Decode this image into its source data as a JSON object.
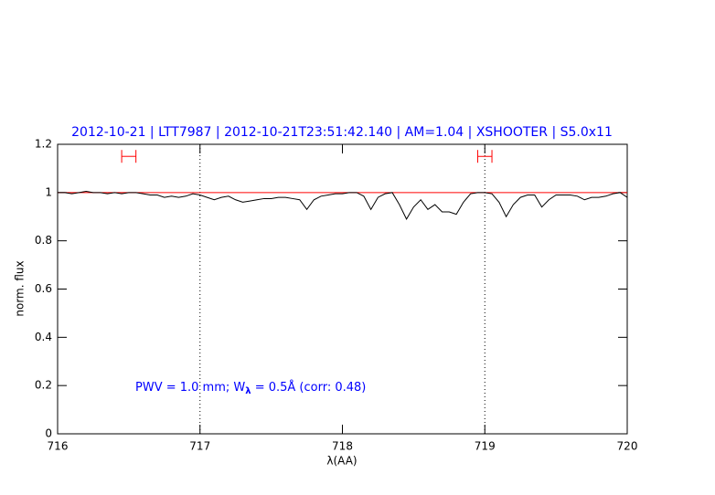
{
  "chart_data": {
    "type": "line",
    "title": "2012-10-21 | LTT7987 | 2012-10-21T23:51:42.140 | AM=1.04 | XSHOOTER | S5.0x11",
    "x_label": "λ(AA)",
    "y_label": "norm. flux",
    "annotation": {
      "prefix": "PWV = 1.0 mm; W",
      "subscript": "λ",
      "suffix": " = 0.5Å (corr: 0.48)"
    },
    "xlim": [
      716,
      720
    ],
    "ylim": [
      0,
      1.2
    ],
    "xticks": [
      716,
      717,
      718,
      719,
      720
    ],
    "yticks": [
      0,
      0.2,
      0.4,
      0.6,
      0.8,
      1,
      1.2
    ],
    "series": [
      {
        "color": "#000000",
        "x": [
          716.0,
          716.05,
          716.1,
          716.15,
          716.2,
          716.25,
          716.3,
          716.35,
          716.4,
          716.45,
          716.5,
          716.55,
          716.6,
          716.65,
          716.7,
          716.75,
          716.8,
          716.85,
          716.9,
          716.95,
          717.0,
          717.05,
          717.1,
          717.15,
          717.2,
          717.25,
          717.3,
          717.35,
          717.4,
          717.45,
          717.5,
          717.55,
          717.6,
          717.65,
          717.7,
          717.75,
          717.8,
          717.85,
          717.9,
          717.95,
          718.0,
          718.05,
          718.1,
          718.15,
          718.2,
          718.25,
          718.3,
          718.35,
          718.4,
          718.45,
          718.5,
          718.55,
          718.6,
          718.65,
          718.7,
          718.75,
          718.8,
          718.85,
          718.9,
          718.95,
          719.0,
          719.05,
          719.1,
          719.15,
          719.2,
          719.25,
          719.3,
          719.35,
          719.4,
          719.45,
          719.5,
          719.55,
          719.6,
          719.65,
          719.7,
          719.75,
          719.8,
          719.85,
          719.9,
          719.95,
          720.0
        ],
        "values": [
          1.0,
          1.0,
          0.995,
          1.0,
          1.005,
          1.0,
          1.0,
          0.995,
          1.0,
          0.995,
          1.0,
          1.0,
          0.995,
          0.99,
          0.99,
          0.98,
          0.985,
          0.98,
          0.985,
          0.995,
          0.99,
          0.98,
          0.97,
          0.98,
          0.985,
          0.97,
          0.96,
          0.965,
          0.97,
          0.975,
          0.975,
          0.98,
          0.98,
          0.975,
          0.97,
          0.93,
          0.97,
          0.985,
          0.99,
          0.995,
          0.995,
          1.0,
          1.0,
          0.985,
          0.93,
          0.98,
          0.995,
          1.0,
          0.95,
          0.89,
          0.94,
          0.97,
          0.93,
          0.95,
          0.92,
          0.92,
          0.91,
          0.96,
          0.995,
          1.0,
          1.0,
          0.995,
          0.96,
          0.9,
          0.95,
          0.98,
          0.99,
          0.99,
          0.94,
          0.97,
          0.99,
          0.99,
          0.99,
          0.985,
          0.97,
          0.98,
          0.98,
          0.985,
          0.995,
          1.0,
          0.98
        ]
      }
    ],
    "continuum": 1,
    "continuum_color": "#ff0000",
    "vlines": [
      717,
      719
    ],
    "intervals": [
      [
        716.45,
        716.55
      ],
      [
        718.95,
        719.05
      ]
    ],
    "interval_level": 1.15,
    "interval_color": "#ff0000"
  }
}
